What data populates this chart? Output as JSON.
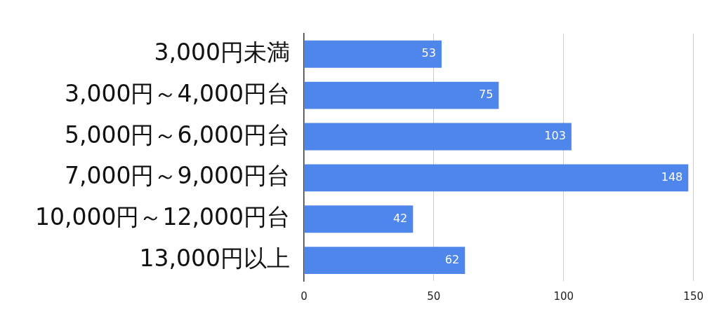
{
  "chart_data": {
    "type": "bar",
    "orientation": "horizontal",
    "categories": [
      "3,000円未満",
      "3,000円～4,000円台",
      "5,000円～6,000円台",
      "7,000円～9,000円台",
      "10,000円～12,000円台",
      "13,000円以上"
    ],
    "values": [
      53,
      75,
      103,
      148,
      42,
      62
    ],
    "color": "#4f86ec",
    "xlim": [
      0,
      150
    ],
    "xticks": [
      0,
      50,
      100,
      150
    ],
    "grid": "x",
    "legend": false,
    "data_labels": true
  }
}
